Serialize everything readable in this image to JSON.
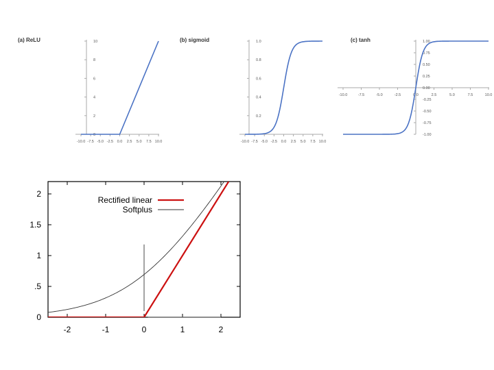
{
  "chart_data": [
    {
      "type": "line",
      "title": "(a) ReLU",
      "x": [
        -10,
        0,
        10
      ],
      "series": [
        {
          "values": [
            0,
            0,
            10
          ]
        }
      ],
      "xlim": [
        -10,
        10
      ],
      "ylim": [
        0,
        10
      ],
      "xticks": [
        "-10.0",
        "-7.5",
        "-5.0",
        "-2.5",
        "0.0",
        "2.5",
        "5.0",
        "7.5",
        "10.0"
      ],
      "yticks": [
        "0",
        "2",
        "4",
        "6",
        "8",
        "10"
      ],
      "line_color": "#4a72c4",
      "grid": false
    },
    {
      "type": "line",
      "title": "(b) sigmoid",
      "x": [
        -10,
        -7.5,
        -5,
        -4,
        -3,
        -2,
        -1,
        0,
        1,
        2,
        3,
        4,
        5,
        7.5,
        10
      ],
      "series": [
        {
          "values": [
            0.0,
            0.001,
            0.007,
            0.018,
            0.047,
            0.119,
            0.269,
            0.5,
            0.731,
            0.881,
            0.953,
            0.982,
            0.993,
            0.999,
            1.0
          ]
        }
      ],
      "xlim": [
        -10,
        10
      ],
      "ylim": [
        0,
        1.0
      ],
      "xticks": [
        "-10.0",
        "-7.5",
        "-5.0",
        "-2.5",
        "0.0",
        "2.5",
        "5.0",
        "7.5",
        "10.0"
      ],
      "yticks": [
        "0.2",
        "0.4",
        "0.6",
        "0.8",
        "1.0"
      ],
      "line_color": "#4a72c4",
      "grid": false
    },
    {
      "type": "line",
      "title": "(c) tanh",
      "x": [
        -10,
        -5,
        -3,
        -2,
        -1.5,
        -1,
        -0.5,
        0,
        0.5,
        1,
        1.5,
        2,
        3,
        5,
        10
      ],
      "series": [
        {
          "values": [
            -1.0,
            -1.0,
            -0.995,
            -0.964,
            -0.905,
            -0.762,
            -0.462,
            0.0,
            0.462,
            0.762,
            0.905,
            0.964,
            0.995,
            1.0,
            1.0
          ]
        }
      ],
      "xlim": [
        -10,
        10
      ],
      "ylim": [
        -1,
        1
      ],
      "xticks": [
        "-10.0",
        "-7.5",
        "-5.0",
        "-2.5",
        "0.0",
        "2.5",
        "5.0",
        "7.5",
        "10.0"
      ],
      "yticks": [
        "-1.00",
        "-0.75",
        "-0.50",
        "-0.25",
        "0.00",
        "0.25",
        "0.50",
        "0.75",
        "1.00"
      ],
      "line_color": "#4a72c4",
      "grid": false
    },
    {
      "type": "line",
      "title": "",
      "x": [
        -2.5,
        -2,
        -1.5,
        -1,
        -0.5,
        0,
        0.5,
        1,
        1.5,
        2,
        2.2
      ],
      "series": [
        {
          "name": "Rectified linear",
          "color": "#cc1111",
          "values": [
            0,
            0,
            0,
            0,
            0,
            0,
            0.5,
            1.0,
            1.5,
            2.0,
            2.2
          ]
        },
        {
          "name": "Softplus",
          "color": "#333333",
          "values": [
            0.079,
            0.127,
            0.201,
            0.313,
            0.474,
            0.693,
            0.974,
            1.313,
            1.701,
            2.127,
            2.305
          ]
        }
      ],
      "xlim": [
        -2.5,
        2.5
      ],
      "ylim": [
        0,
        2.2
      ],
      "xticks": [
        "-2",
        "-1",
        "0",
        "1",
        "2"
      ],
      "yticks": [
        "0",
        ".5",
        "1",
        "1.5",
        "2"
      ],
      "legend_position": "top-left"
    }
  ]
}
